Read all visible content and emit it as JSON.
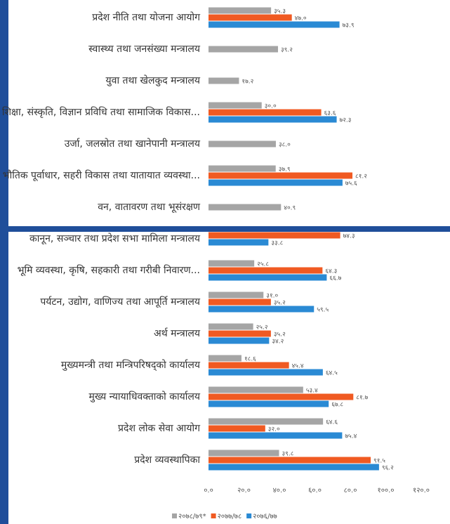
{
  "chart_data": {
    "type": "hbar",
    "categories": [
      "प्रदेश नीति तथा योजना आयोग",
      "स्वास्थ्य तथा जनसंख्या मन्त्रालय",
      "युवा तथा खेलकुद मन्त्रालय",
      "शिक्षा, संस्कृति, विज्ञान प्रविधि तथा सामाजिक विकास...",
      "उर्जा, जलस्रोत तथा खानेपानी मन्त्रालय",
      "भौतिक पूर्वाधार, सहरी विकास तथा यातायात व्यवस्था...",
      "वन, वातावरण तथा भूसंरक्षण",
      "कानून, सञ्चार तथा प्रदेश सभा मामिला मन्त्रालय",
      "भूमि व्यवस्था, कृषि, सहकारी तथा गरीबी निवारण...",
      "पर्यटन, उद्योग, वाणिज्य तथा आपूर्ति मन्त्रालय",
      "अर्थ मन्त्रालय",
      "मुख्यमन्त्री तथा मन्त्रिपरिषद्को कार्यालय",
      "मुख्य न्यायाधिवक्ताको कार्यालय",
      "प्रदेश लोक सेवा आयोग",
      "प्रदेश व्यवस्थापिका"
    ],
    "series": [
      {
        "name": "२०७८/७९*",
        "color": "#a5a5a5",
        "values": [
          35.3,
          39.2,
          17.2,
          30.0,
          38.0,
          37.9,
          40.9,
          null,
          25.8,
          31.0,
          25.2,
          18.6,
          53.4,
          64.6,
          39.8
        ],
        "value_labels": [
          "३५.३",
          "३९.२",
          "१७.२",
          "३०.०",
          "३८.०",
          "३७.९",
          "४०.९",
          null,
          "२५.८",
          "३१.०",
          "२५.२",
          "१८.६",
          "५३.४",
          "६४.६",
          "३९.८"
        ]
      },
      {
        "name": "२०७७/७८",
        "color": "#f05a22",
        "values": [
          47.0,
          null,
          null,
          63.6,
          null,
          81.2,
          null,
          74.3,
          64.3,
          35.2,
          35.2,
          45.4,
          81.7,
          32.0,
          91.5
        ],
        "value_labels": [
          "४७.०",
          null,
          null,
          "६३.६",
          null,
          "८१.२",
          null,
          "७४.३",
          "६४.३",
          "३५.२",
          "३५.२",
          "४५.४",
          "८१.७",
          "३२.०",
          "९१.५"
        ]
      },
      {
        "name": "२०७६/७७",
        "color": "#2a8ad4",
        "values": [
          73.9,
          null,
          null,
          72.3,
          null,
          75.6,
          null,
          33.8,
          66.7,
          59.5,
          34.2,
          64.5,
          67.8,
          75.4,
          96.2
        ],
        "value_labels": [
          "७३.९",
          null,
          null,
          "७२.३",
          null,
          "७५.६",
          null,
          "३३.८",
          "६६.७",
          "५९.५",
          "३४.२",
          "६४.५",
          "६७.८",
          "७५.४",
          "९६.२"
        ]
      }
    ],
    "xlim": [
      0,
      120
    ],
    "xticks": [
      {
        "value": 0,
        "label": "०.०"
      },
      {
        "value": 20,
        "label": "२०.०"
      },
      {
        "value": 40,
        "label": "४०.०"
      },
      {
        "value": 60,
        "label": "६०.०"
      },
      {
        "value": 80,
        "label": "८०.०"
      },
      {
        "value": 100,
        "label": "१००.०"
      },
      {
        "value": 120,
        "label": "१२०.०"
      }
    ],
    "legend": "bottom"
  }
}
